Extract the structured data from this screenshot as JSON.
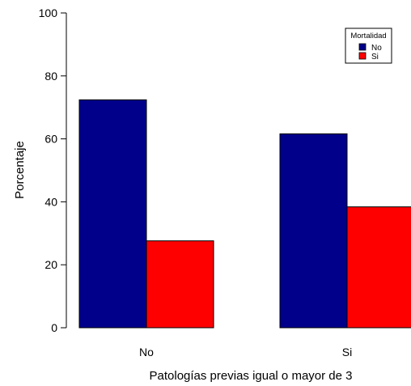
{
  "chart_data": {
    "type": "bar",
    "categories": [
      "No",
      "Si"
    ],
    "series": [
      {
        "name": "No",
        "color": "#00008b",
        "values": [
          72.4,
          61.6
        ]
      },
      {
        "name": "Si",
        "color": "#ff0000",
        "values": [
          27.6,
          38.4
        ]
      }
    ],
    "xlabel": "Patologías previas igual o mayor de 3",
    "ylabel": "Porcentaje",
    "ylim": [
      0,
      100
    ],
    "yticks": [
      0,
      20,
      40,
      60,
      80,
      100
    ],
    "grid": false,
    "legend": {
      "title": "Mortalidad",
      "position": "top-right"
    }
  }
}
